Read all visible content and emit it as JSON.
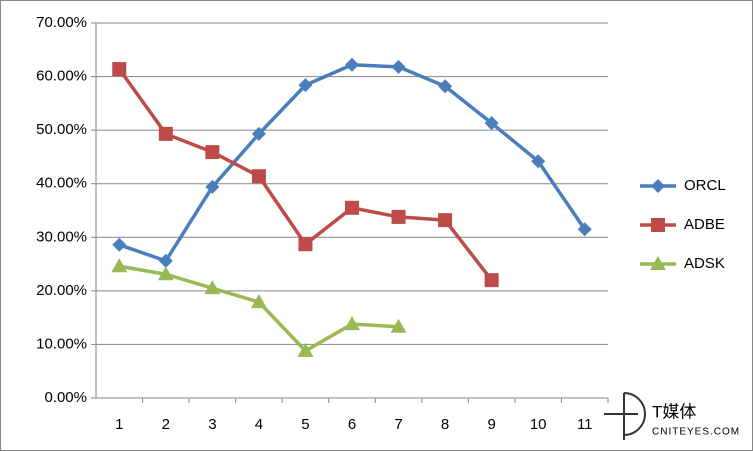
{
  "chart_data": {
    "type": "line",
    "categories": [
      "1",
      "2",
      "3",
      "4",
      "5",
      "6",
      "7",
      "8",
      "9",
      "10",
      "11"
    ],
    "series": [
      {
        "name": "ORCL",
        "color": "#4a7ebb",
        "marker": "diamond",
        "values": [
          28.6,
          25.6,
          39.4,
          49.3,
          58.4,
          62.2,
          61.8,
          58.2,
          51.3,
          44.2,
          31.5
        ]
      },
      {
        "name": "ADBE",
        "color": "#be4b48",
        "marker": "square",
        "values": [
          61.4,
          49.3,
          45.9,
          41.4,
          28.7,
          35.5,
          33.8,
          33.2,
          22.0,
          null,
          null
        ]
      },
      {
        "name": "ADSK",
        "color": "#98b954",
        "marker": "triangle",
        "values": [
          24.6,
          23.1,
          20.5,
          17.9,
          8.8,
          13.8,
          13.3,
          null,
          null,
          null,
          null
        ]
      }
    ],
    "ylim": [
      0,
      70
    ],
    "yticks": [
      {
        "value": 0,
        "label": "0.00%"
      },
      {
        "value": 10,
        "label": "10.00%"
      },
      {
        "value": 20,
        "label": "20.00%"
      },
      {
        "value": 30,
        "label": "30.00%"
      },
      {
        "value": 40,
        "label": "40.00%"
      },
      {
        "value": 50,
        "label": "50.00%"
      },
      {
        "value": 60,
        "label": "60.00%"
      },
      {
        "value": 70,
        "label": "70.00%"
      }
    ],
    "grid": true,
    "legend": "right"
  },
  "watermark": {
    "name": "T媒体",
    "site": "CNITEYES.COM"
  }
}
